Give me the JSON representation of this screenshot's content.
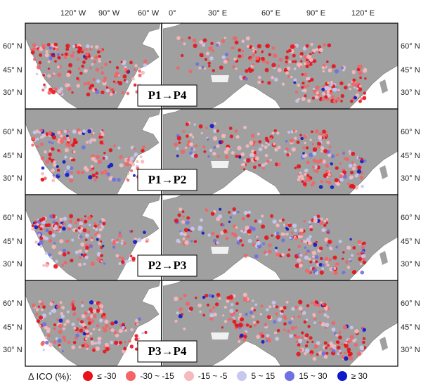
{
  "axes": {
    "na_lon_ticks": [
      "120° W",
      "90° W",
      "60° W"
    ],
    "ea_lon_ticks": [
      "0°",
      "30° E",
      "60° E",
      "90° E",
      "120° E"
    ],
    "lat_ticks": [
      "60° N",
      "45° N",
      "30° N"
    ]
  },
  "panels": [
    {
      "label": "P1→P4"
    },
    {
      "label": "P1→P2"
    },
    {
      "label": "P2→P3"
    },
    {
      "label": "P3→P4"
    }
  ],
  "legend": {
    "title": "Δ ICO (%):",
    "items": [
      {
        "label": "≤ -30",
        "color": "#e8121b"
      },
      {
        "label": "-30 ~ -15",
        "color": "#f26466"
      },
      {
        "label": "-15 ~ -5",
        "color": "#f7b9bd"
      },
      {
        "label": "5 ~ 15",
        "color": "#c7c8ef"
      },
      {
        "label": "15 ~ 30",
        "color": "#6e70e3"
      },
      {
        "label": "≥ 30",
        "color": "#1019c9"
      }
    ]
  },
  "colors": {
    "land": "#a0a0a0",
    "ocean": "#ffffff",
    "border": "#000000"
  }
}
